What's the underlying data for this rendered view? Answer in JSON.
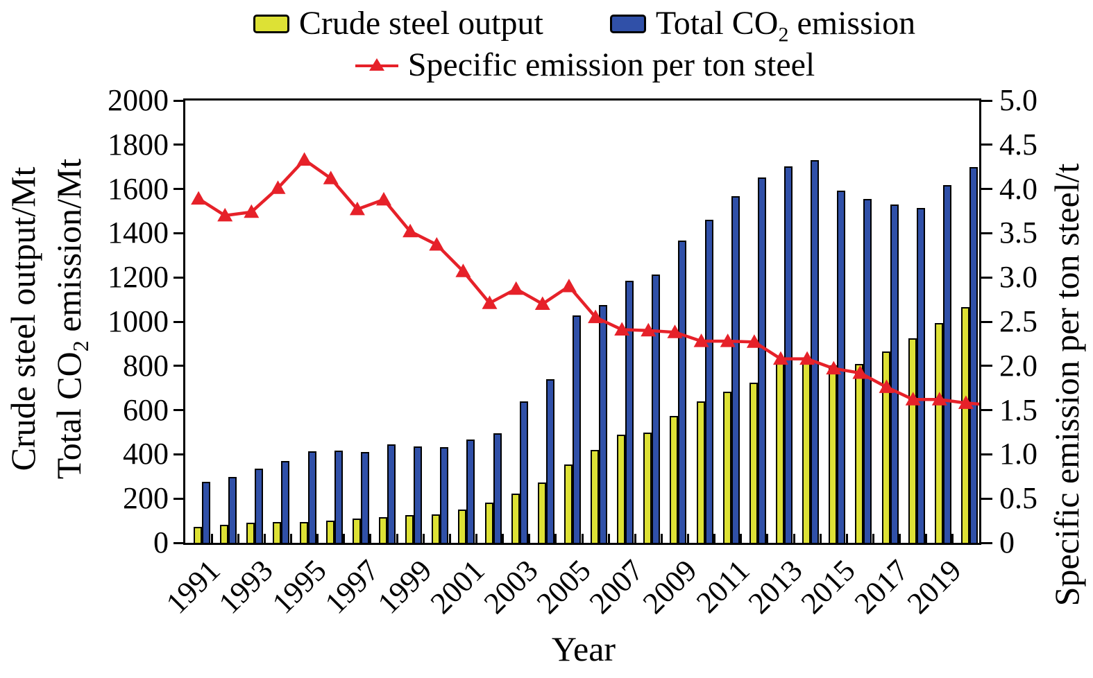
{
  "legend": {
    "crude_label": "Crude steel output",
    "co2_pre": "Total CO",
    "co2_sub": "2",
    "co2_post": " emission",
    "specific_label": "Specific emission per ton steel"
  },
  "axes": {
    "left_title_1": "Crude steel output/Mt",
    "left_title_2_pre": "Total CO",
    "left_title_2_sub": "2",
    "left_title_2_post": " emission/Mt",
    "right_title": "Specific emission per ton steel/t",
    "x_title": "Year"
  },
  "chart_data": {
    "type": "bar+line",
    "title": "",
    "xlabel": "Year",
    "ylabel_left": [
      "Crude steel output/Mt",
      "Total CO2 emission/Mt"
    ],
    "ylabel_right": "Specific emission per ton steel/t",
    "ylim_left": [
      0,
      2000
    ],
    "ylim_right": [
      0,
      5
    ],
    "grid": false,
    "legend_position": "top",
    "x": [
      1991,
      1992,
      1993,
      1994,
      1995,
      1996,
      1997,
      1998,
      1999,
      2000,
      2001,
      2002,
      2003,
      2004,
      2005,
      2006,
      2007,
      2008,
      2009,
      2010,
      2011,
      2012,
      2013,
      2014,
      2015,
      2016,
      2017,
      2018,
      2019,
      2020
    ],
    "xtick_labels": [
      "1991",
      "1993",
      "1995",
      "1997",
      "1999",
      "2001",
      "2003",
      "2005",
      "2007",
      "2009",
      "2011",
      "2013",
      "2015",
      "2017",
      "2019"
    ],
    "left_ticks": [
      "0",
      "200",
      "400",
      "600",
      "800",
      "1000",
      "1200",
      "1400",
      "1600",
      "1800",
      "2000"
    ],
    "right_ticks": [
      "0",
      "0.5",
      "1.0",
      "1.5",
      "2.0",
      "2.5",
      "3.0",
      "3.5",
      "4.0",
      "4.5",
      "5.0"
    ],
    "series": [
      {
        "name": "Crude steel output",
        "kind": "bar",
        "axis": "left",
        "unit": "Mt",
        "color": "#dde135",
        "values": [
          71,
          81,
          90,
          93,
          95,
          101,
          109,
          115,
          124,
          129,
          152,
          182,
          222,
          273,
          353,
          419,
          490,
          500,
          574,
          639,
          685,
          724,
          813,
          822,
          804,
          808,
          865,
          925,
          995,
          1065
        ]
      },
      {
        "name": "Total CO2 emission",
        "kind": "bar",
        "axis": "left",
        "unit": "Mt",
        "color": "#3050a8",
        "values": [
          277,
          298,
          336,
          370,
          413,
          417,
          410,
          444,
          436,
          432,
          468,
          495,
          640,
          740,
          1027,
          1075,
          1185,
          1213,
          1368,
          1461,
          1567,
          1652,
          1702,
          1731,
          1594,
          1556,
          1530,
          1513,
          1619,
          1699
        ]
      },
      {
        "name": "Specific emission per ton steel",
        "kind": "line",
        "axis": "right",
        "unit": "t/t",
        "color": "#e62129",
        "marker": "triangle-up",
        "values": [
          3.89,
          3.7,
          3.74,
          4.01,
          4.33,
          4.12,
          3.77,
          3.88,
          3.52,
          3.37,
          3.07,
          2.71,
          2.87,
          2.7,
          2.9,
          2.55,
          2.41,
          2.4,
          2.38,
          2.28,
          2.28,
          2.27,
          2.08,
          2.08,
          1.97,
          1.92,
          1.76,
          1.62,
          1.62,
          1.58
        ]
      }
    ],
    "colors": {
      "bar_edge": "#000000",
      "frame": "#000000",
      "text": "#000000"
    }
  }
}
